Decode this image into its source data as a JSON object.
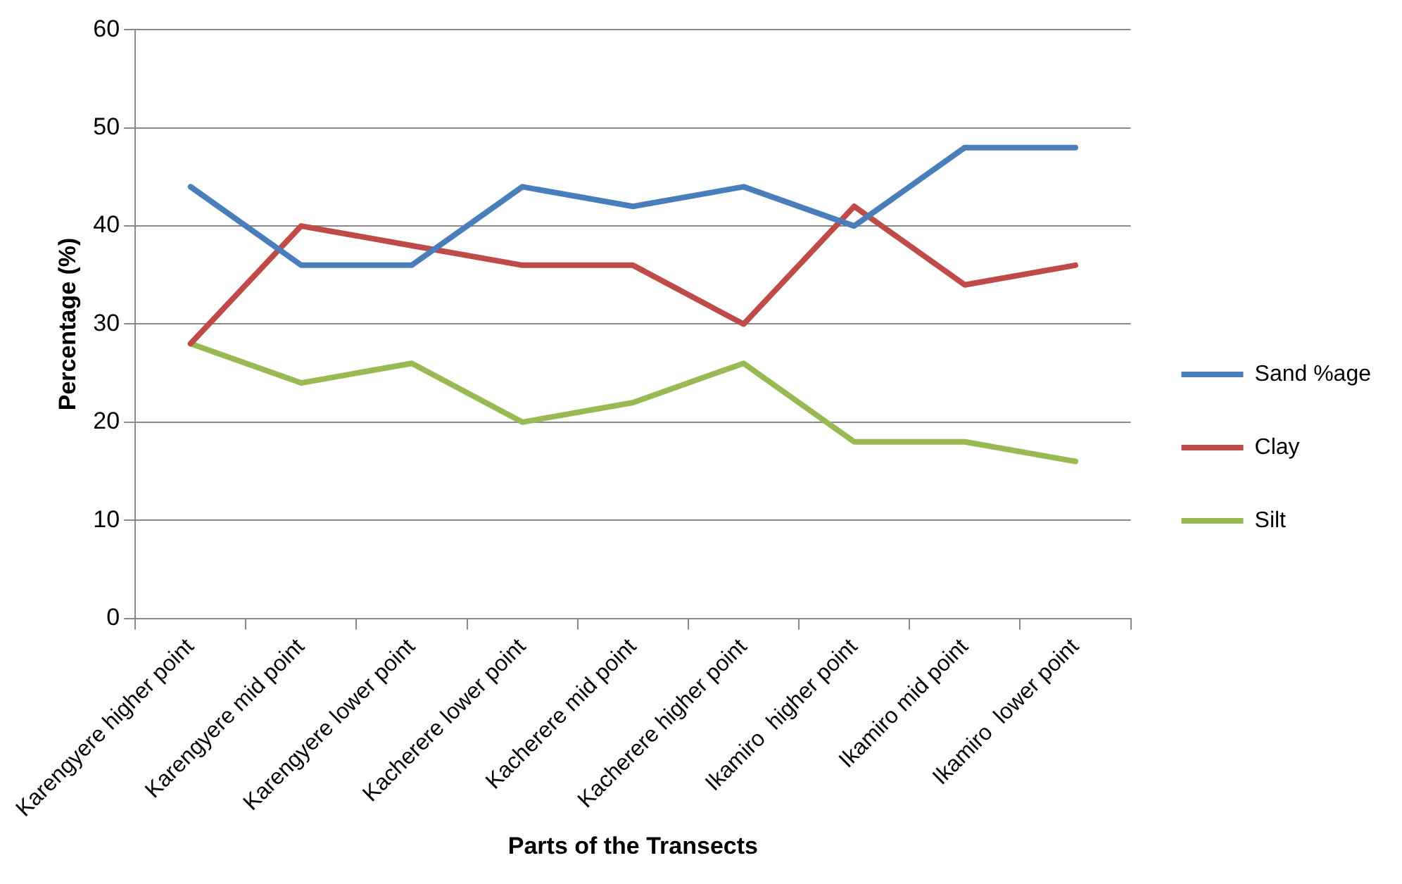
{
  "chart_data": {
    "type": "line",
    "xlabel": "Parts of the Transects",
    "ylabel": "Percentage (%)",
    "categories": [
      "Karengyere higher point",
      "Karengyere mid point",
      "Karengyere lower point",
      "Kacherere lower point",
      "Kacherere mid point",
      "Kacherere higher point",
      "Ikamiro  higher point",
      "Ikamiro mid point",
      "Ikamiro  lower point"
    ],
    "series": [
      {
        "name": "Sand %age",
        "color": "#4a7ebb",
        "values": [
          44,
          36,
          36,
          44,
          42,
          44,
          40,
          48,
          48
        ]
      },
      {
        "name": "Clay",
        "color": "#be4b48",
        "values": [
          28,
          40,
          38,
          36,
          36,
          30,
          42,
          34,
          36
        ]
      },
      {
        "name": "Silt",
        "color": "#98b954",
        "values": [
          28,
          24,
          26,
          20,
          22,
          26,
          18,
          18,
          16
        ]
      }
    ],
    "ylim": [
      0,
      60
    ],
    "yticks": [
      0,
      10,
      20,
      30,
      40,
      50,
      60
    ],
    "grid": "y",
    "legend": "right",
    "marker": "none",
    "line_style": "solid"
  }
}
